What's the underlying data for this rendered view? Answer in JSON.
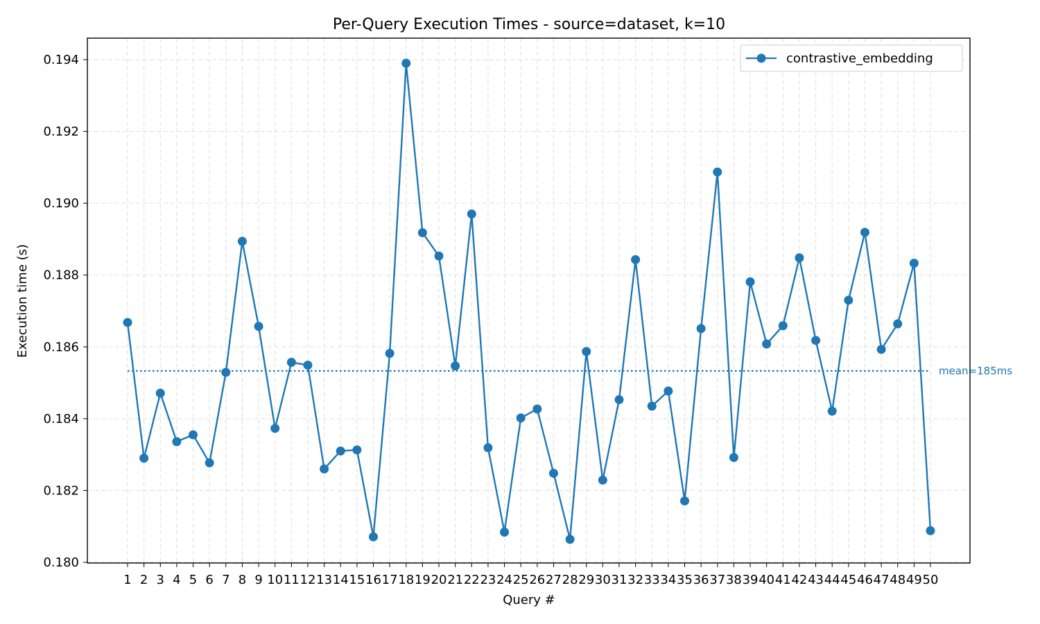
{
  "chart_data": {
    "type": "line",
    "title": "Per-Query Execution Times - source=dataset, k=10",
    "xlabel": "Query #",
    "ylabel": "Execution time (s)",
    "ylim": [
      0.18,
      0.1945
    ],
    "yticks": [
      "0.180",
      "0.182",
      "0.184",
      "0.186",
      "0.188",
      "0.190",
      "0.192",
      "0.194"
    ],
    "grid": true,
    "legend_position": "top-right",
    "series": [
      {
        "name": "contrastive_embedding",
        "color": "#1f77b4",
        "marker": "circle",
        "x": [
          1,
          2,
          3,
          4,
          5,
          6,
          7,
          8,
          9,
          10,
          11,
          12,
          13,
          14,
          15,
          16,
          17,
          18,
          19,
          20,
          21,
          22,
          23,
          24,
          25,
          26,
          27,
          28,
          29,
          30,
          31,
          32,
          33,
          34,
          35,
          36,
          37,
          38,
          39,
          40,
          41,
          42,
          43,
          44,
          45,
          46,
          47,
          48,
          49,
          50
        ],
        "values": [
          0.18668,
          0.1829,
          0.18471,
          0.18336,
          0.18355,
          0.18277,
          0.18529,
          0.18894,
          0.18657,
          0.18373,
          0.18557,
          0.18549,
          0.1826,
          0.1831,
          0.18313,
          0.18071,
          0.18582,
          0.1939,
          0.18918,
          0.18853,
          0.18547,
          0.1897,
          0.18319,
          0.18084,
          0.18402,
          0.18427,
          0.18248,
          0.18064,
          0.18587,
          0.18229,
          0.18453,
          0.18843,
          0.18435,
          0.18477,
          0.18171,
          0.18651,
          0.19087,
          0.18292,
          0.18781,
          0.18608,
          0.18659,
          0.18848,
          0.18618,
          0.18421,
          0.1873,
          0.18919,
          0.18593,
          0.18664,
          0.18833,
          0.18088
        ]
      }
    ],
    "mean_line": {
      "value": 0.18533,
      "label": "mean=185ms",
      "color": "#1f77b4",
      "style": "dotted"
    }
  }
}
